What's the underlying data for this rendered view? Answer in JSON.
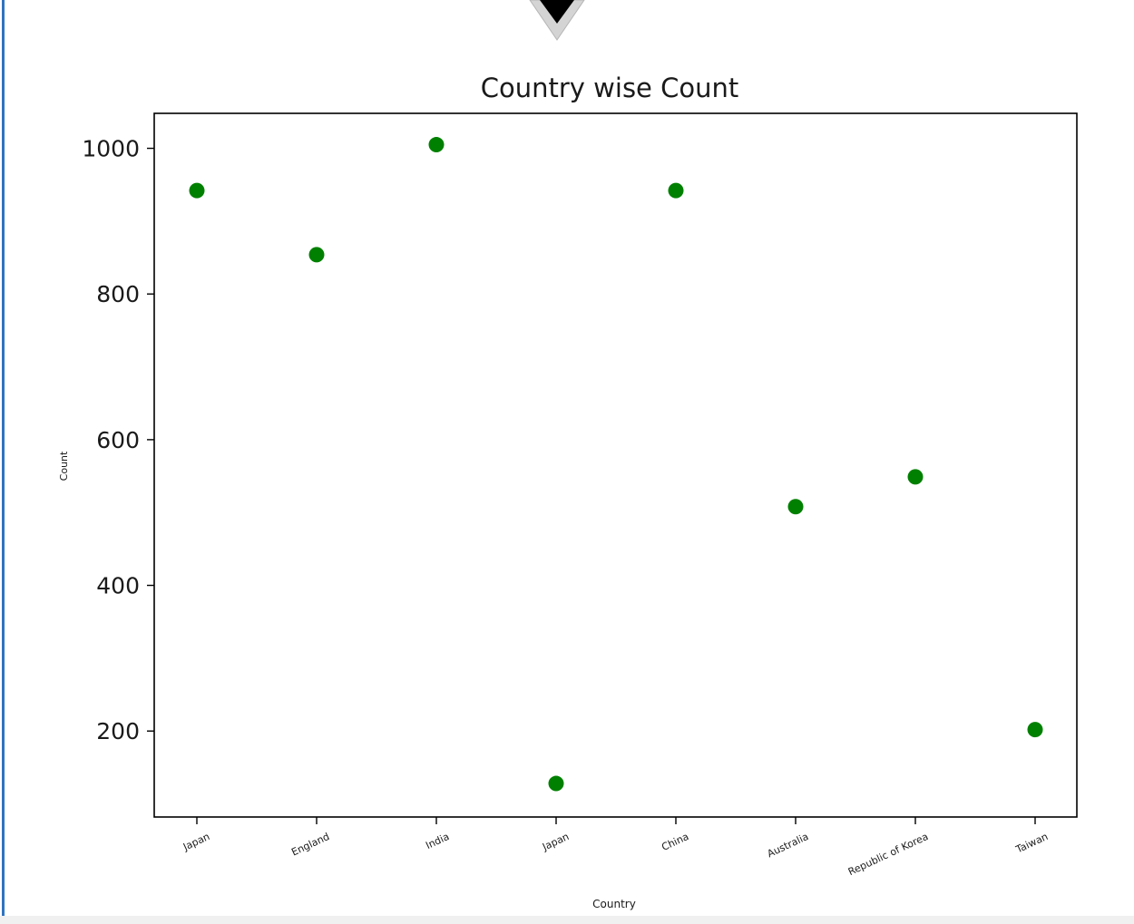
{
  "chart_data": {
    "type": "scatter",
    "title": "Country wise Count",
    "xlabel": "Country",
    "ylabel": "Count",
    "categories": [
      "Japan",
      "England",
      "India",
      "Japan",
      "China",
      "Australia",
      "Republic of Korea",
      "Taiwan"
    ],
    "values": [
      942,
      854,
      1005,
      128,
      942,
      508,
      549,
      202
    ],
    "yticks": [
      200,
      400,
      600,
      800,
      1000
    ],
    "ylim": [
      82,
      1048
    ],
    "marker_color": "#008000",
    "grid": false,
    "legend": "none"
  }
}
